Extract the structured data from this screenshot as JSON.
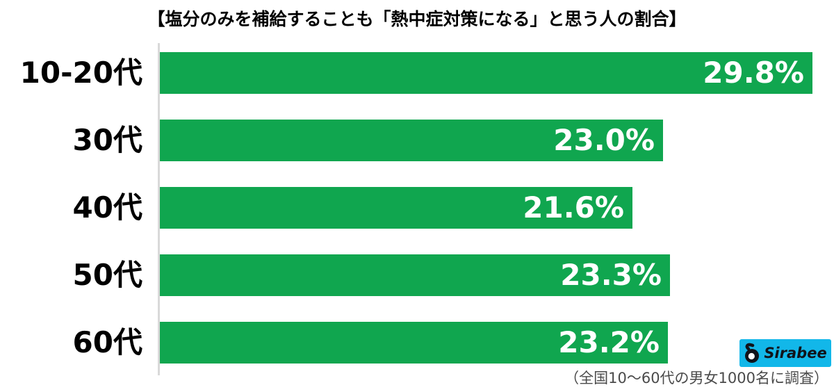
{
  "chart_data": {
    "type": "bar",
    "orientation": "horizontal",
    "title": "【塩分のみを補給することも「熱中症対策になる」と思う人の割合】",
    "categories": [
      "10-20代",
      "30代",
      "40代",
      "50代",
      "60代"
    ],
    "values": [
      29.8,
      23.0,
      21.6,
      23.3,
      23.2
    ],
    "value_labels": [
      "29.8%",
      "23.0%",
      "21.6%",
      "23.3%",
      "23.2%"
    ],
    "xlabel": "",
    "ylabel": "",
    "xlim": [
      0,
      30.8
    ],
    "grid": false,
    "legend": "none",
    "value_label_position": "inside-end"
  },
  "colors": {
    "bar": "#10a64f",
    "value_label": "#ffffff",
    "category_label": "#000000",
    "title": "#000000",
    "axis_line": "#d9d9d9",
    "note": "#4a4a4a",
    "logo_bg": "#12b7e9",
    "logo_text": "#10131a",
    "background": "#ffffff"
  },
  "footer": {
    "note": "（全国10〜60代の男女1000名に調査）"
  },
  "logo": {
    "text": "Sirabee",
    "icon": "sirabee-mark-icon"
  }
}
